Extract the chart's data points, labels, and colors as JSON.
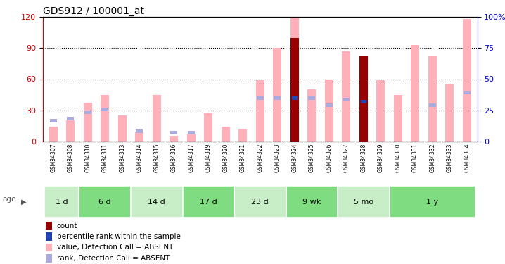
{
  "title": "GDS912 / 100001_at",
  "samples": [
    "GSM34307",
    "GSM34308",
    "GSM34310",
    "GSM34311",
    "GSM34313",
    "GSM34314",
    "GSM34315",
    "GSM34316",
    "GSM34317",
    "GSM34319",
    "GSM34320",
    "GSM34321",
    "GSM34322",
    "GSM34323",
    "GSM34324",
    "GSM34325",
    "GSM34326",
    "GSM34327",
    "GSM34328",
    "GSM34329",
    "GSM34330",
    "GSM34331",
    "GSM34332",
    "GSM34333",
    "GSM34334"
  ],
  "age_groups": [
    {
      "label": "1 d",
      "start": 0,
      "end": 2
    },
    {
      "label": "6 d",
      "start": 2,
      "end": 5
    },
    {
      "label": "14 d",
      "start": 5,
      "end": 8
    },
    {
      "label": "17 d",
      "start": 8,
      "end": 11
    },
    {
      "label": "23 d",
      "start": 11,
      "end": 14
    },
    {
      "label": "9 wk",
      "start": 14,
      "end": 17
    },
    {
      "label": "5 mo",
      "start": 17,
      "end": 20
    },
    {
      "label": "1 y",
      "start": 20,
      "end": 25
    }
  ],
  "pink_bar": [
    14,
    20,
    37,
    45,
    25,
    9,
    45,
    5,
    7,
    27,
    14,
    12,
    59,
    90,
    120,
    50,
    60,
    87,
    55,
    59,
    45,
    93,
    82,
    55,
    118
  ],
  "blue_rank": [
    20,
    22,
    28,
    31,
    0,
    10,
    0,
    8,
    8,
    0,
    0,
    0,
    42,
    42,
    42,
    42,
    35,
    40,
    38,
    0,
    0,
    0,
    35,
    0,
    47
  ],
  "dark_red_count": [
    0,
    0,
    0,
    0,
    0,
    0,
    0,
    0,
    0,
    0,
    0,
    0,
    0,
    0,
    100,
    0,
    0,
    0,
    82,
    0,
    0,
    0,
    0,
    0,
    0
  ],
  "blue_sq_rank": [
    0,
    0,
    0,
    0,
    0,
    0,
    0,
    0,
    0,
    0,
    0,
    0,
    0,
    0,
    42,
    0,
    0,
    0,
    38,
    0,
    0,
    0,
    0,
    0,
    0
  ],
  "ylim_left": [
    0,
    120
  ],
  "ylim_right": [
    0,
    100
  ],
  "yticks_left": [
    0,
    30,
    60,
    90,
    120
  ],
  "yticks_right_vals": [
    0,
    25,
    50,
    75,
    100
  ],
  "yticks_right_labels": [
    "0",
    "25",
    "50",
    "75",
    "100%"
  ],
  "color_pink": "#FFB0B8",
  "color_blue_rank": "#AAAADD",
  "color_dark_red": "#990000",
  "color_blue_sq": "#2244BB",
  "color_left_axis": "#CC0000",
  "color_right_axis": "#0000CC",
  "age_colors": [
    "#C8EEC8",
    "#80DC80"
  ],
  "bar_width": 0.5,
  "legend": [
    {
      "label": "count",
      "color": "#990000"
    },
    {
      "label": "percentile rank within the sample",
      "color": "#2244BB"
    },
    {
      "label": "value, Detection Call = ABSENT",
      "color": "#FFB0B8"
    },
    {
      "label": "rank, Detection Call = ABSENT",
      "color": "#AAAADD"
    }
  ]
}
